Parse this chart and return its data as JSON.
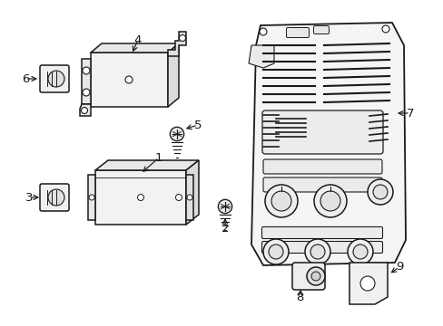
{
  "bg_color": "#ffffff",
  "fig_width": 4.89,
  "fig_height": 3.6,
  "dpi": 100,
  "line_color": "#1a1a1a",
  "line_width": 1.1
}
